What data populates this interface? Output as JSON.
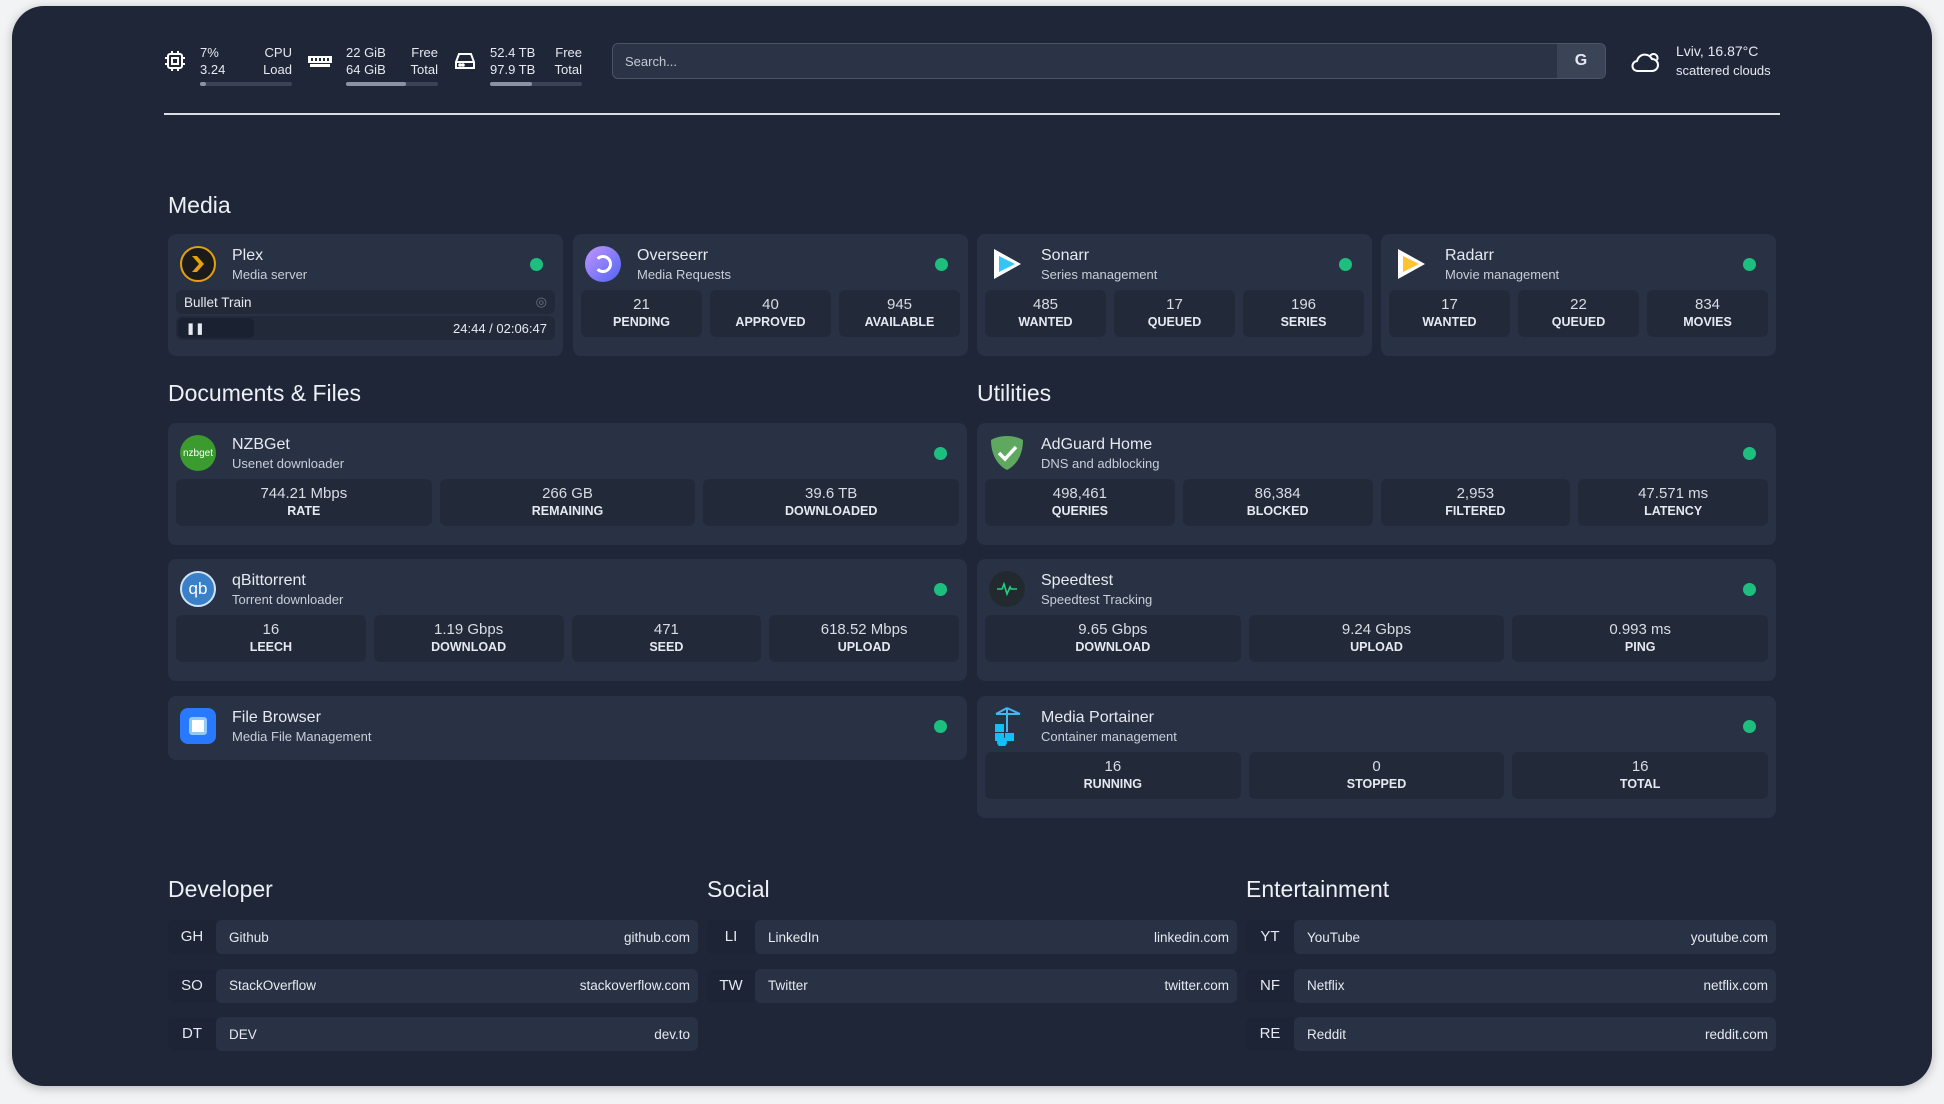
{
  "topbar": {
    "cpu": {
      "v1": "7%",
      "l1": "CPU",
      "v2": "3.24",
      "l2": "Load",
      "fill": 7
    },
    "memory": {
      "v1": "22 GiB",
      "l1": "Free",
      "v2": "64 GiB",
      "l2": "Total",
      "fill": 65
    },
    "disk": {
      "v1": "52.4 TB",
      "l1": "Free",
      "v2": "97.9 TB",
      "l2": "Total",
      "fill": 46
    },
    "search": {
      "placeholder": "Search...",
      "button": "G"
    },
    "weather": {
      "location": "Lviv, 16.87°C",
      "condition": "scattered clouds"
    }
  },
  "sections": {
    "media": "Media",
    "docs": "Documents & Files",
    "utilities": "Utilities",
    "developer": "Developer",
    "social": "Social",
    "entertainment": "Entertainment"
  },
  "media": [
    {
      "name": "Plex",
      "desc": "Media server",
      "icon": "plex-icon",
      "now_playing": "Bullet Train",
      "time": "24:44 / 02:06:47"
    },
    {
      "name": "Overseerr",
      "desc": "Media Requests",
      "icon": "overseerr-icon",
      "stats": [
        {
          "v": "21",
          "l": "PENDING"
        },
        {
          "v": "40",
          "l": "APPROVED"
        },
        {
          "v": "945",
          "l": "AVAILABLE"
        }
      ]
    },
    {
      "name": "Sonarr",
      "desc": "Series management",
      "icon": "sonarr-icon",
      "stats": [
        {
          "v": "485",
          "l": "WANTED"
        },
        {
          "v": "17",
          "l": "QUEUED"
        },
        {
          "v": "196",
          "l": "SERIES"
        }
      ]
    },
    {
      "name": "Radarr",
      "desc": "Movie management",
      "icon": "radarr-icon",
      "stats": [
        {
          "v": "17",
          "l": "WANTED"
        },
        {
          "v": "22",
          "l": "QUEUED"
        },
        {
          "v": "834",
          "l": "MOVIES"
        }
      ]
    }
  ],
  "docs": [
    {
      "name": "NZBGet",
      "desc": "Usenet downloader",
      "icon_text": "nzbget",
      "stats": [
        {
          "v": "744.21 Mbps",
          "l": "RATE"
        },
        {
          "v": "266 GB",
          "l": "REMAINING"
        },
        {
          "v": "39.6 TB",
          "l": "DOWNLOADED"
        }
      ]
    },
    {
      "name": "qBittorrent",
      "desc": "Torrent downloader",
      "icon_text": "qb",
      "stats": [
        {
          "v": "16",
          "l": "LEECH"
        },
        {
          "v": "1.19 Gbps",
          "l": "DOWNLOAD"
        },
        {
          "v": "471",
          "l": "SEED"
        },
        {
          "v": "618.52 Mbps",
          "l": "UPLOAD"
        }
      ]
    },
    {
      "name": "File Browser",
      "desc": "Media File Management"
    }
  ],
  "utilities": [
    {
      "name": "AdGuard Home",
      "desc": "DNS and adblocking",
      "stats": [
        {
          "v": "498,461",
          "l": "QUERIES"
        },
        {
          "v": "86,384",
          "l": "BLOCKED"
        },
        {
          "v": "2,953",
          "l": "FILTERED"
        },
        {
          "v": "47.571 ms",
          "l": "LATENCY"
        }
      ]
    },
    {
      "name": "Speedtest",
      "desc": "Speedtest Tracking",
      "stats": [
        {
          "v": "9.65 Gbps",
          "l": "DOWNLOAD"
        },
        {
          "v": "9.24 Gbps",
          "l": "UPLOAD"
        },
        {
          "v": "0.993 ms",
          "l": "PING"
        }
      ]
    },
    {
      "name": "Media Portainer",
      "desc": "Container management",
      "stats": [
        {
          "v": "16",
          "l": "RUNNING"
        },
        {
          "v": "0",
          "l": "STOPPED"
        },
        {
          "v": "16",
          "l": "TOTAL"
        }
      ]
    }
  ],
  "bookmarks": {
    "developer": [
      {
        "abbr": "GH",
        "name": "Github",
        "url": "github.com"
      },
      {
        "abbr": "SO",
        "name": "StackOverflow",
        "url": "stackoverflow.com"
      },
      {
        "abbr": "DT",
        "name": "DEV",
        "url": "dev.to"
      }
    ],
    "social": [
      {
        "abbr": "LI",
        "name": "LinkedIn",
        "url": "linkedin.com"
      },
      {
        "abbr": "TW",
        "name": "Twitter",
        "url": "twitter.com"
      }
    ],
    "entertainment": [
      {
        "abbr": "YT",
        "name": "YouTube",
        "url": "youtube.com"
      },
      {
        "abbr": "NF",
        "name": "Netflix",
        "url": "netflix.com"
      },
      {
        "abbr": "RE",
        "name": "Reddit",
        "url": "reddit.com"
      }
    ]
  },
  "colors": {
    "background": "#1e2638",
    "card": "#283244",
    "stat": "#222a3a",
    "status_ok": "#1dbf7f"
  }
}
